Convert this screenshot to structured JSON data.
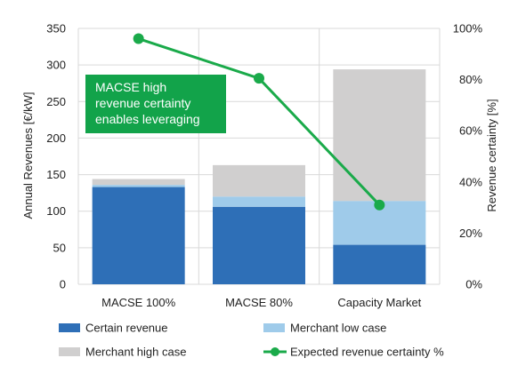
{
  "chart_data": {
    "type": "bar",
    "stacked": true,
    "categories": [
      "MACSE 100%",
      "MACSE 80%",
      "Capacity Market"
    ],
    "series": [
      {
        "name": "Certain revenue",
        "values": [
          133,
          106,
          54
        ],
        "color": "#2e6fb7"
      },
      {
        "name": "Merchant low case",
        "values": [
          3,
          14,
          60
        ],
        "color": "#9fcbea"
      },
      {
        "name": "Merchant high case",
        "values": [
          8,
          43,
          180
        ],
        "color": "#d0cfcf"
      }
    ],
    "line_series": {
      "name": "Expected revenue certainty %",
      "values": [
        96,
        80.5,
        31
      ],
      "axis": "right",
      "color": "#1aaa4a"
    },
    "ylabel": "Annual Revenues [€/kW]",
    "ylim": [
      0,
      350
    ],
    "yticks": [
      "0",
      "50",
      "100",
      "150",
      "200",
      "250",
      "300",
      "350"
    ],
    "y2label": "Revenue certainty [%]",
    "y2lim": [
      0,
      100
    ],
    "y2ticks": [
      "0%",
      "20%",
      "40%",
      "60%",
      "80%",
      "100%"
    ],
    "grid": true,
    "legend_position": "bottom",
    "annotation": {
      "lines": [
        "MACSE high",
        "revenue certainty",
        "enables leveraging"
      ],
      "color": "#12a34a"
    }
  }
}
